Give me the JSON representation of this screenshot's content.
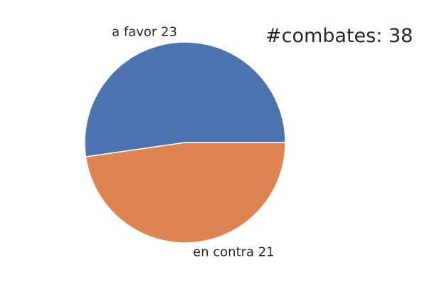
{
  "chart_data": {
    "type": "pie",
    "slices": [
      {
        "label": "a favor",
        "value": 23,
        "display": "a favor 23",
        "color": "#4c72b0"
      },
      {
        "label": "en contra",
        "value": 21,
        "display": "en contra 21",
        "color": "#dd8452"
      }
    ],
    "annotation": "#combates: 38",
    "start_angle_deg": 0,
    "direction": "counterclockwise",
    "legend": "none",
    "edge_color": "#ffffff"
  }
}
